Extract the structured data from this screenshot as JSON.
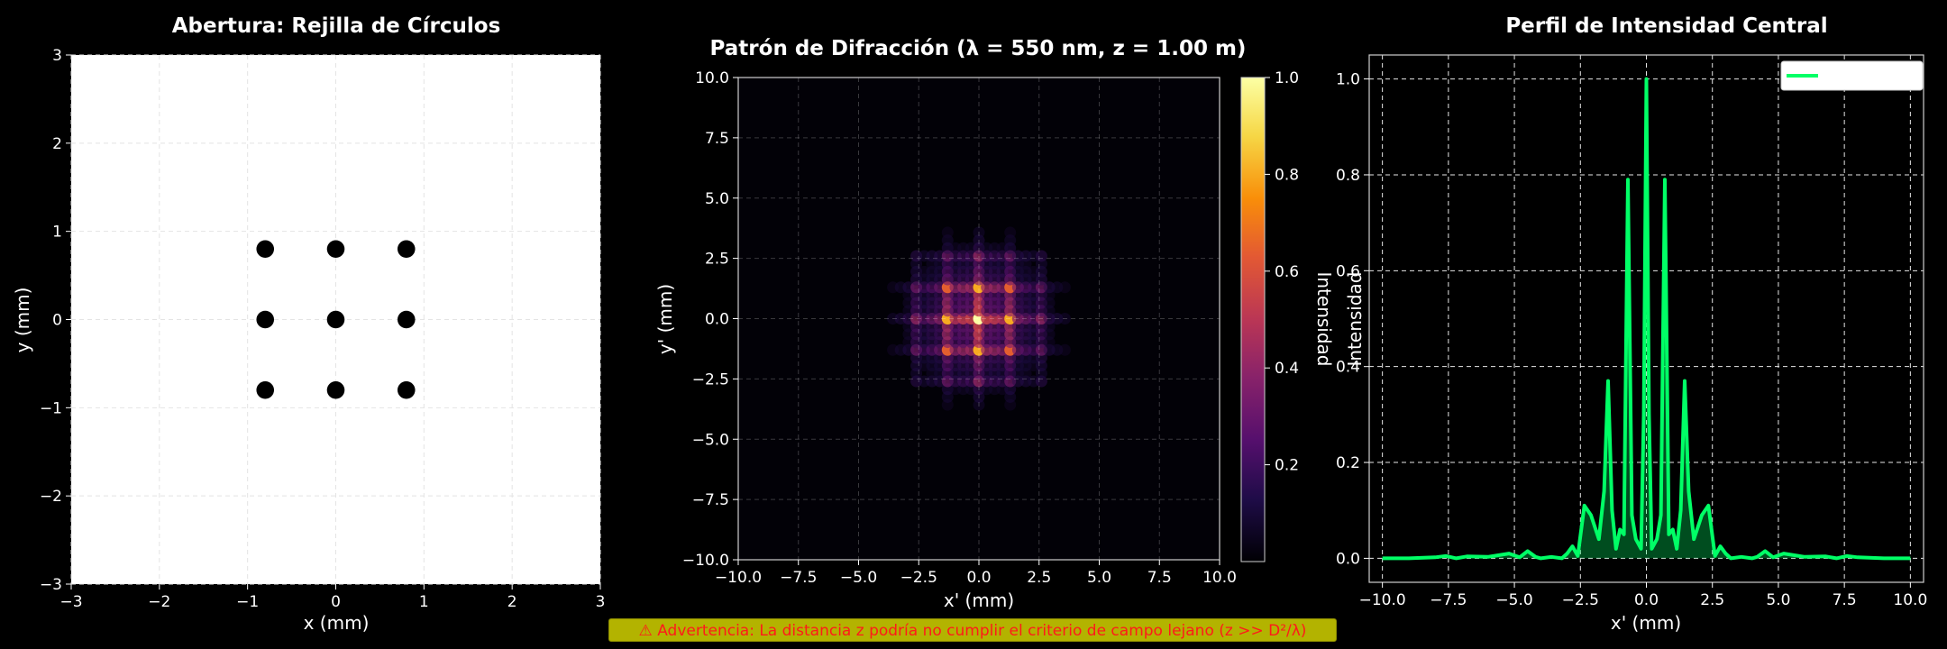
{
  "warning": "⚠ Advertencia: La distancia z podría no cumplir el criterio de campo lejano (z >> D²/λ)",
  "chart_data": [
    {
      "type": "scatter",
      "title": "Abertura: Rejilla de Círculos",
      "xlabel": "x (mm)",
      "ylabel": "y (mm)",
      "xlim": [
        -3,
        3
      ],
      "ylim": [
        -3,
        3
      ],
      "xticks": [
        "−3",
        "−2",
        "−1",
        "0",
        "1",
        "2",
        "3"
      ],
      "yticks": [
        "−3",
        "−2",
        "−1",
        "0",
        "1",
        "2",
        "3"
      ],
      "grid": true,
      "background": "#ffffff",
      "circle_radius_mm": 0.1,
      "points": [
        {
          "x": -0.8,
          "y": 0.8
        },
        {
          "x": 0,
          "y": 0.8
        },
        {
          "x": 0.8,
          "y": 0.8
        },
        {
          "x": -0.8,
          "y": 0
        },
        {
          "x": 0,
          "y": 0
        },
        {
          "x": 0.8,
          "y": 0
        },
        {
          "x": -0.8,
          "y": -0.8
        },
        {
          "x": 0,
          "y": -0.8
        },
        {
          "x": 0.8,
          "y": -0.8
        }
      ]
    },
    {
      "type": "heatmap",
      "title": "Patrón de Difracción (λ = 550 nm, z = 1.00 m)",
      "xlabel": "x' (mm)",
      "ylabel": "y' (mm)",
      "xlim": [
        -10,
        10
      ],
      "ylim": [
        -10,
        10
      ],
      "xticks": [
        "−10.0",
        "−7.5",
        "−5.0",
        "−2.5",
        "0.0",
        "2.5",
        "5.0",
        "7.5",
        "10.0"
      ],
      "yticks": [
        "−10.0",
        "−7.5",
        "−5.0",
        "−2.5",
        "0.0",
        "2.5",
        "5.0",
        "7.5",
        "10.0"
      ],
      "grid": true,
      "colormap": "inferno",
      "colorbar": {
        "label": "Intensidad",
        "range": [
          0,
          1
        ],
        "ticks": [
          "0.2",
          "0.4",
          "0.6",
          "0.8",
          "1.0"
        ]
      },
      "peak": {
        "x": 0,
        "y": 0,
        "value": 1.0
      }
    },
    {
      "type": "line",
      "title": "Perfil de Intensidad Central",
      "xlabel": "x' (mm)",
      "ylabel": "Intensidad",
      "xlim": [
        -10.5,
        10.5
      ],
      "ylim": [
        -0.05,
        1.05
      ],
      "xticks": [
        "−10.0",
        "−7.5",
        "−5.0",
        "−2.5",
        "0.0",
        "2.5",
        "5.0",
        "7.5",
        "10.0"
      ],
      "yticks": [
        "0.0",
        "0.2",
        "0.4",
        "0.6",
        "0.8",
        "1.0"
      ],
      "grid": true,
      "legend": "top-right",
      "color": "#00ff66",
      "fill": true,
      "series": [
        {
          "x": [
            -10.0,
            -9.0,
            -8.0,
            -7.6,
            -7.2,
            -6.8,
            -6.0,
            -5.2,
            -4.8,
            -4.5,
            -4.2,
            -4.0,
            -3.6,
            -3.2,
            -3.0,
            -2.8,
            -2.6,
            -2.35,
            -2.1,
            -1.8,
            -1.6,
            -1.45,
            -1.3,
            -1.15,
            -1.0,
            -0.85,
            -0.7,
            -0.55,
            -0.4,
            -0.2,
            -0.1,
            0.0,
            0.1,
            0.2,
            0.4,
            0.55,
            0.7,
            0.85,
            1.0,
            1.15,
            1.3,
            1.45,
            1.6,
            1.8,
            2.1,
            2.35,
            2.6,
            2.8,
            3.0,
            3.2,
            3.6,
            4.0,
            4.2,
            4.5,
            4.8,
            5.2,
            6.0,
            6.8,
            7.2,
            7.6,
            8.0,
            9.0,
            10.0
          ],
          "y": [
            0.0,
            0.0,
            0.002,
            0.005,
            0.0,
            0.004,
            0.003,
            0.01,
            0.002,
            0.015,
            0.003,
            0.0,
            0.003,
            0.0,
            0.01,
            0.025,
            0.005,
            0.11,
            0.09,
            0.04,
            0.14,
            0.37,
            0.1,
            0.02,
            0.06,
            0.05,
            0.79,
            0.09,
            0.04,
            0.02,
            0.3,
            1.0,
            0.3,
            0.02,
            0.04,
            0.09,
            0.79,
            0.05,
            0.06,
            0.02,
            0.1,
            0.37,
            0.14,
            0.04,
            0.09,
            0.11,
            0.005,
            0.025,
            0.01,
            0.0,
            0.003,
            0.0,
            0.003,
            0.015,
            0.002,
            0.01,
            0.003,
            0.004,
            0.0,
            0.005,
            0.002,
            0.0,
            0.0
          ]
        }
      ]
    }
  ]
}
